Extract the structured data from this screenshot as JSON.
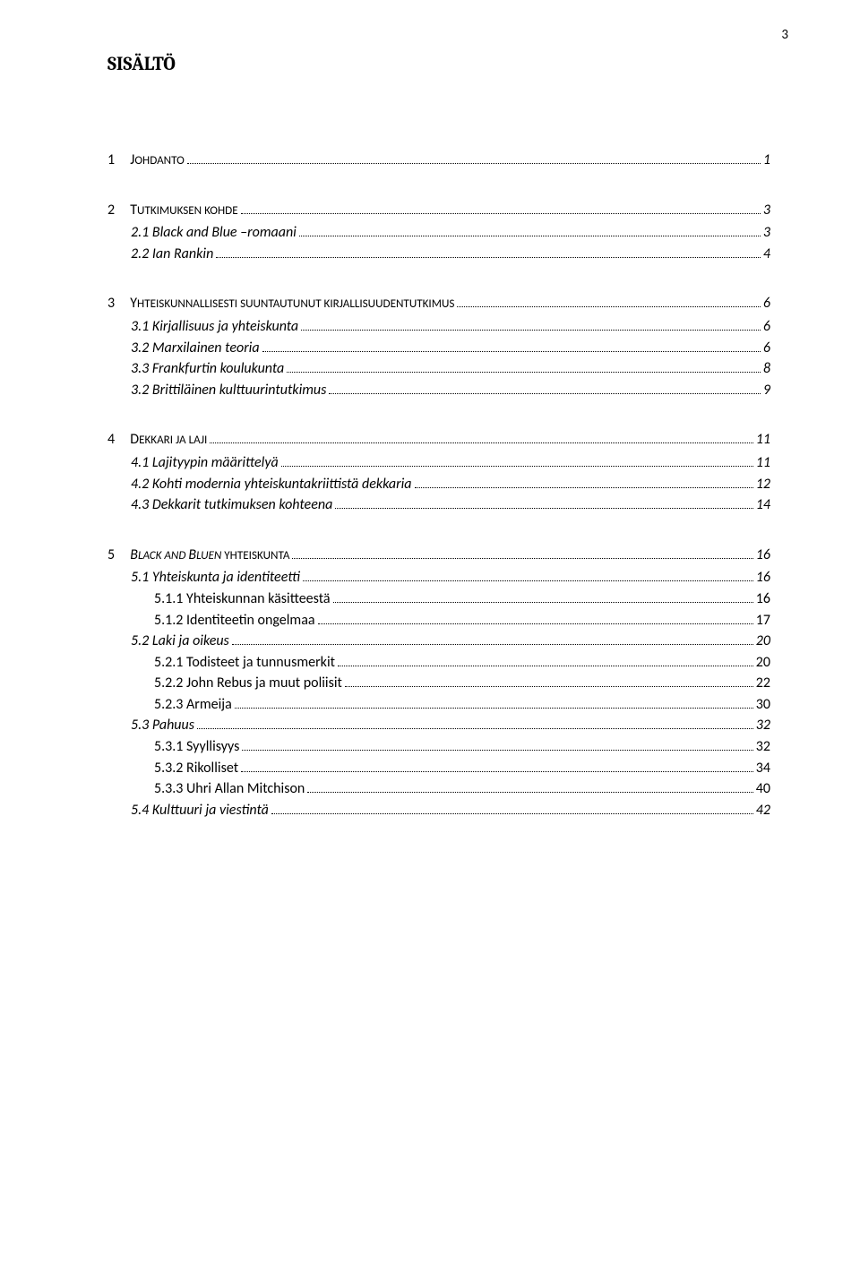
{
  "page_number": "3",
  "title": "SISÄLTÖ",
  "toc": [
    {
      "level": 1,
      "num": "1",
      "pre": "J",
      "rest": "OHDANTO",
      "page": "1"
    },
    {
      "level": 1,
      "num": "2",
      "pre": "T",
      "rest": "UTKIMUKSEN KOHDE",
      "page": "3"
    },
    {
      "level": 2,
      "label": "2.1 Black and Blue –romaani",
      "page": "3"
    },
    {
      "level": 2,
      "label": "2.2  Ian Rankin",
      "page": "4"
    },
    {
      "level": 1,
      "num": "3",
      "pre": "Y",
      "rest": "HTEISKUNNALLISESTI SUUNTAUTUNUT KIRJALLISUUDENTUTKIMUS",
      "page": "6"
    },
    {
      "level": 2,
      "label": "3.1 Kirjallisuus ja yhteiskunta",
      "page": "6"
    },
    {
      "level": 2,
      "label": "3.2 Marxilainen teoria",
      "page": "6"
    },
    {
      "level": 2,
      "label": "3.3 Frankfurtin koulukunta",
      "page": "8"
    },
    {
      "level": 2,
      "label": "3.2 Brittiläinen kulttuurintutkimus",
      "page": "9"
    },
    {
      "level": 1,
      "num": "4",
      "pre": "D",
      "rest": "EKKARI JA LAJI",
      "page": "11"
    },
    {
      "level": 2,
      "label": "4.1 Lajityypin määrittelyä",
      "page": "11"
    },
    {
      "level": 2,
      "label": "4.2 Kohti modernia yhteiskuntakriittistä dekkaria",
      "page": "12"
    },
    {
      "level": 2,
      "label": "4.3 Dekkarit tutkimuksen kohteena",
      "page": "14"
    },
    {
      "level": 1,
      "num": "5",
      "preItalic": "B",
      "restItalic": "LACK AND ",
      "pre2Italic": "B",
      "rest2Italic": "LUEN",
      "tail": " YHTEISKUNTA",
      "page": "16"
    },
    {
      "level": 2,
      "label": "5.1 Yhteiskunta ja identiteetti",
      "page": "16"
    },
    {
      "level": 3,
      "label": "5.1.1 Yhteiskunnan käsitteestä",
      "page": "16"
    },
    {
      "level": 3,
      "label": "5.1.2 Identiteetin ongelmaa",
      "page": "17"
    },
    {
      "level": 2,
      "label": "5.2 Laki ja oikeus",
      "page": "20"
    },
    {
      "level": 3,
      "label": "5.2.1 Todisteet ja tunnusmerkit",
      "page": "20"
    },
    {
      "level": 3,
      "label": "5.2.2 John Rebus ja muut poliisit",
      "page": "22"
    },
    {
      "level": 3,
      "label": "5.2.3  Armeija",
      "page": "30"
    },
    {
      "level": 2,
      "label": "5.3 Pahuus",
      "page": "32"
    },
    {
      "level": 3,
      "label": "5.3.1 Syyllisyys",
      "page": "32"
    },
    {
      "level": 3,
      "label": "5.3.2 Rikolliset",
      "page": "34"
    },
    {
      "level": 3,
      "label": "5.3.3 Uhri Allan Mitchison",
      "page": "40"
    },
    {
      "level": 2,
      "label": "5.4 Kulttuuri ja viestintä",
      "page": "42"
    }
  ]
}
